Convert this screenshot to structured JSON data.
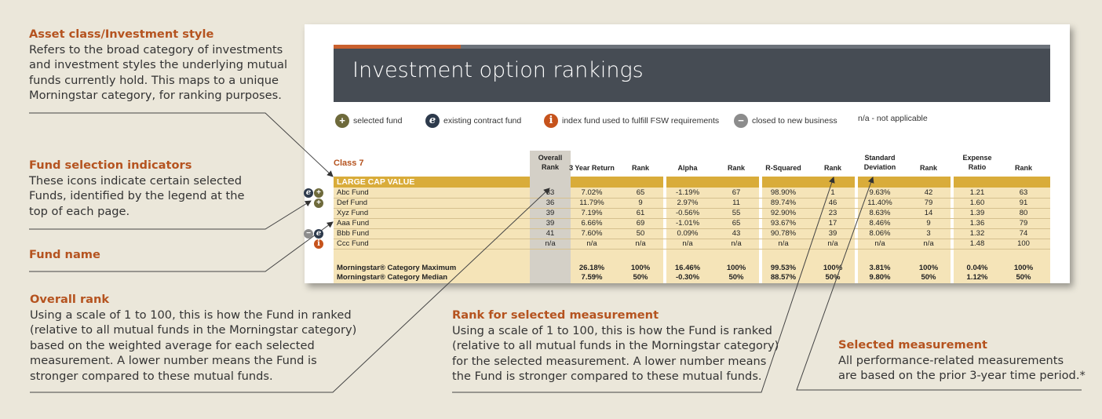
{
  "annotations": [
    {
      "id": "asset",
      "heading": "Asset class/Investment style",
      "lines": [
        "Refers to the broad category of investments",
        "and investment styles the underlying mutual",
        "funds currently hold. This maps to a unique",
        "Morningstar category, for ranking purposes."
      ]
    },
    {
      "id": "indicators",
      "heading": "Fund selection indicators",
      "lines": [
        "These icons indicate certain selected",
        "Funds, identified by the legend at the",
        "top of each page."
      ]
    },
    {
      "id": "fundname",
      "heading": "Fund name",
      "lines": []
    },
    {
      "id": "overall",
      "heading": "Overall rank",
      "lines": [
        "Using a scale of 1 to 100, this is how the Fund in ranked",
        "(relative to all mutual funds in the Morningstar category)",
        "based on the weighted average for each selected",
        "measurement. A lower number means the Fund is",
        "stronger compared to these mutual funds."
      ]
    },
    {
      "id": "rankmeas",
      "heading": "Rank for selected measurement",
      "lines": [
        "Using a scale of 1 to 100, this is how the Fund is ranked",
        "(relative to all mutual funds in the Morningstar category)",
        "for the selected measurement. A lower number means",
        "the Fund is stronger compared to these mutual funds."
      ]
    },
    {
      "id": "selmeas",
      "heading": "Selected measurement",
      "lines": [
        "All performance-related measurements",
        "are based on the prior 3-year time period.*"
      ]
    }
  ],
  "report": {
    "title": "Investment option rankings",
    "legend": [
      {
        "icon": "selected-fund-icon",
        "glyph": "+",
        "label": "selected fund"
      },
      {
        "icon": "existing-contract-icon",
        "glyph": "e",
        "label": "existing contract fund"
      },
      {
        "icon": "index-fund-icon",
        "glyph": "i",
        "label": "index fund used to fulfill FSW requirements"
      },
      {
        "icon": "closed-fund-icon",
        "glyph": "−",
        "label": "closed to new business"
      },
      {
        "icon": "",
        "glyph": "",
        "label": "n/a - not applicable"
      }
    ],
    "class_label": "Class 7",
    "category": "LARGE CAP VALUE",
    "headers": [
      "Overall\nRank",
      "3 Year Return",
      "Rank",
      "Alpha",
      "Rank",
      "R-Squared",
      "Rank",
      "Standard\nDeviation",
      "Rank",
      "Expense\nRatio",
      "Rank"
    ],
    "funds": [
      {
        "name": "Abc Fund",
        "icons": [
          "e",
          "+"
        ],
        "values": [
          "33",
          "7.02%",
          "65",
          "-1.19%",
          "67",
          "98.90%",
          "1",
          "9.63%",
          "42",
          "1.21",
          "63"
        ]
      },
      {
        "name": "Def Fund",
        "icons": [
          "+"
        ],
        "values": [
          "36",
          "11.79%",
          "9",
          "2.97%",
          "11",
          "89.74%",
          "46",
          "11.40%",
          "79",
          "1.60",
          "91"
        ]
      },
      {
        "name": "Xyz Fund",
        "icons": [],
        "values": [
          "39",
          "7.19%",
          "61",
          "-0.56%",
          "55",
          "92.90%",
          "23",
          "8.63%",
          "14",
          "1.39",
          "80"
        ]
      },
      {
        "name": "Aaa Fund",
        "icons": [],
        "values": [
          "39",
          "6.66%",
          "69",
          "-1.01%",
          "65",
          "93.67%",
          "17",
          "8.46%",
          "9",
          "1.36",
          "79"
        ]
      },
      {
        "name": "Bbb Fund",
        "icons": [
          "−",
          "e"
        ],
        "values": [
          "41",
          "7.60%",
          "50",
          "0.09%",
          "43",
          "90.78%",
          "39",
          "8.06%",
          "3",
          "1.32",
          "74"
        ]
      },
      {
        "name": "Ccc Fund",
        "icons": [
          "i"
        ],
        "values": [
          "n/a",
          "n/a",
          "n/a",
          "n/a",
          "n/a",
          "n/a",
          "n/a",
          "n/a",
          "n/a",
          "1.48",
          "100"
        ]
      }
    ],
    "summary": [
      {
        "name": "Morningstar® Category Maximum",
        "values": [
          "",
          "26.18%",
          "100%",
          "16.46%",
          "100%",
          "99.53%",
          "100%",
          "3.81%",
          "100%",
          "0.04%",
          "100%"
        ]
      },
      {
        "name": "Morningstar® Category Median",
        "values": [
          "",
          "7.59%",
          "50%",
          "-0.30%",
          "50%",
          "88.57%",
          "50%",
          "9.80%",
          "50%",
          "1.12%",
          "50%"
        ]
      }
    ],
    "colors": {
      "accent": "#b5531f",
      "header_bar": "#464c54",
      "category_bar": "#d9ac3a",
      "table_fill": "#f5e4b8"
    }
  }
}
